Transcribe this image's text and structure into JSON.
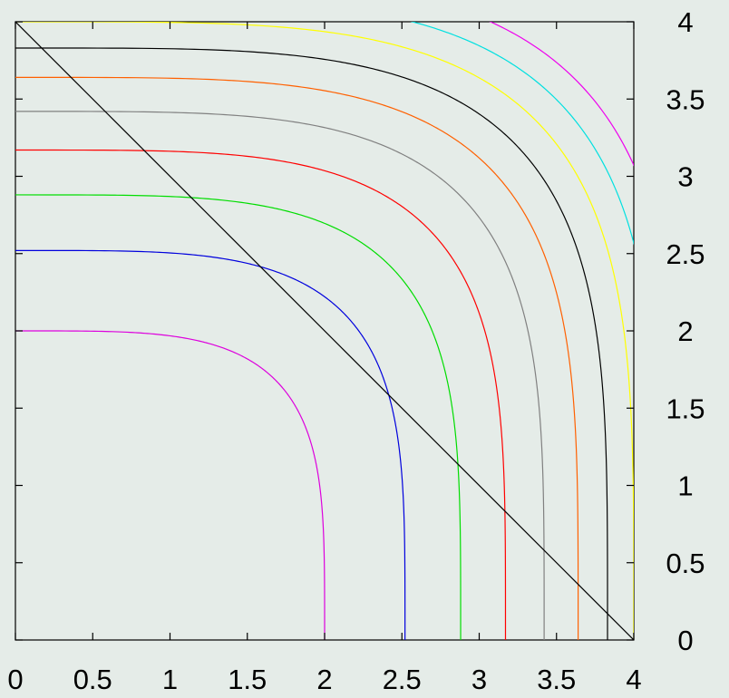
{
  "chart_data": {
    "type": "line",
    "title": "",
    "xlabel": "",
    "ylabel": "",
    "xlim": [
      0,
      4
    ],
    "ylim": [
      0,
      4
    ],
    "x_ticks": [
      "0",
      "0.5",
      "1",
      "1.5",
      "2",
      "2.5",
      "3",
      "3.5",
      "4"
    ],
    "y_ticks": [
      "0",
      "0.5",
      "1",
      "1.5",
      "2",
      "2.5",
      "3",
      "3.5",
      "4"
    ],
    "y_axis_side": "right",
    "grid": false,
    "legend": "none",
    "background_color": "#e5ece8",
    "curve_family": "superellipse level sets x^4 + y^4 = c",
    "series": [
      {
        "level": 2.0,
        "color": "#dd00dd"
      },
      {
        "level": 2.52,
        "color": "#0000dd"
      },
      {
        "level": 2.88,
        "color": "#00dd00"
      },
      {
        "level": 3.17,
        "color": "#ff0000"
      },
      {
        "level": 3.42,
        "color": "#808080"
      },
      {
        "level": 3.64,
        "color": "#ff6000"
      },
      {
        "level": 3.83,
        "color": "#000000"
      },
      {
        "level": 4.0,
        "color": "#ffff00"
      },
      {
        "level": 4.16,
        "color": "#00e0e0"
      },
      {
        "level": 4.31,
        "color": "#ee00ee"
      }
    ],
    "reference_line": {
      "x": [
        0,
        4
      ],
      "y": [
        4,
        0
      ],
      "color": "#000000"
    }
  }
}
